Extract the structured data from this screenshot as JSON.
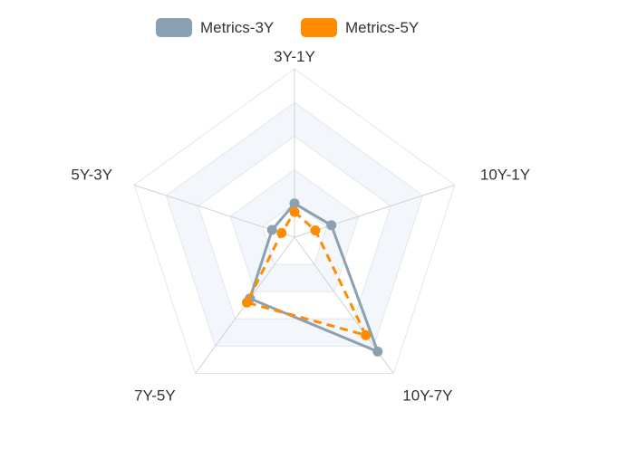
{
  "chart_data": {
    "type": "radar",
    "indicators": [
      "3Y-1Y",
      "10Y-1Y",
      "10Y-7Y",
      "7Y-5Y",
      "5Y-3Y"
    ],
    "max": 1,
    "split_number": 5,
    "legend_position": "top-center",
    "series": [
      {
        "name": "Metrics-3Y",
        "values": [
          0.2,
          0.23,
          0.84,
          0.45,
          0.14
        ],
        "color": "#8aa1b1",
        "line_style": "solid"
      },
      {
        "name": "Metrics-5Y",
        "values": [
          0.15,
          0.13,
          0.72,
          0.48,
          0.08
        ],
        "color": "#ff8c00",
        "line_style": "dashed"
      }
    ]
  }
}
